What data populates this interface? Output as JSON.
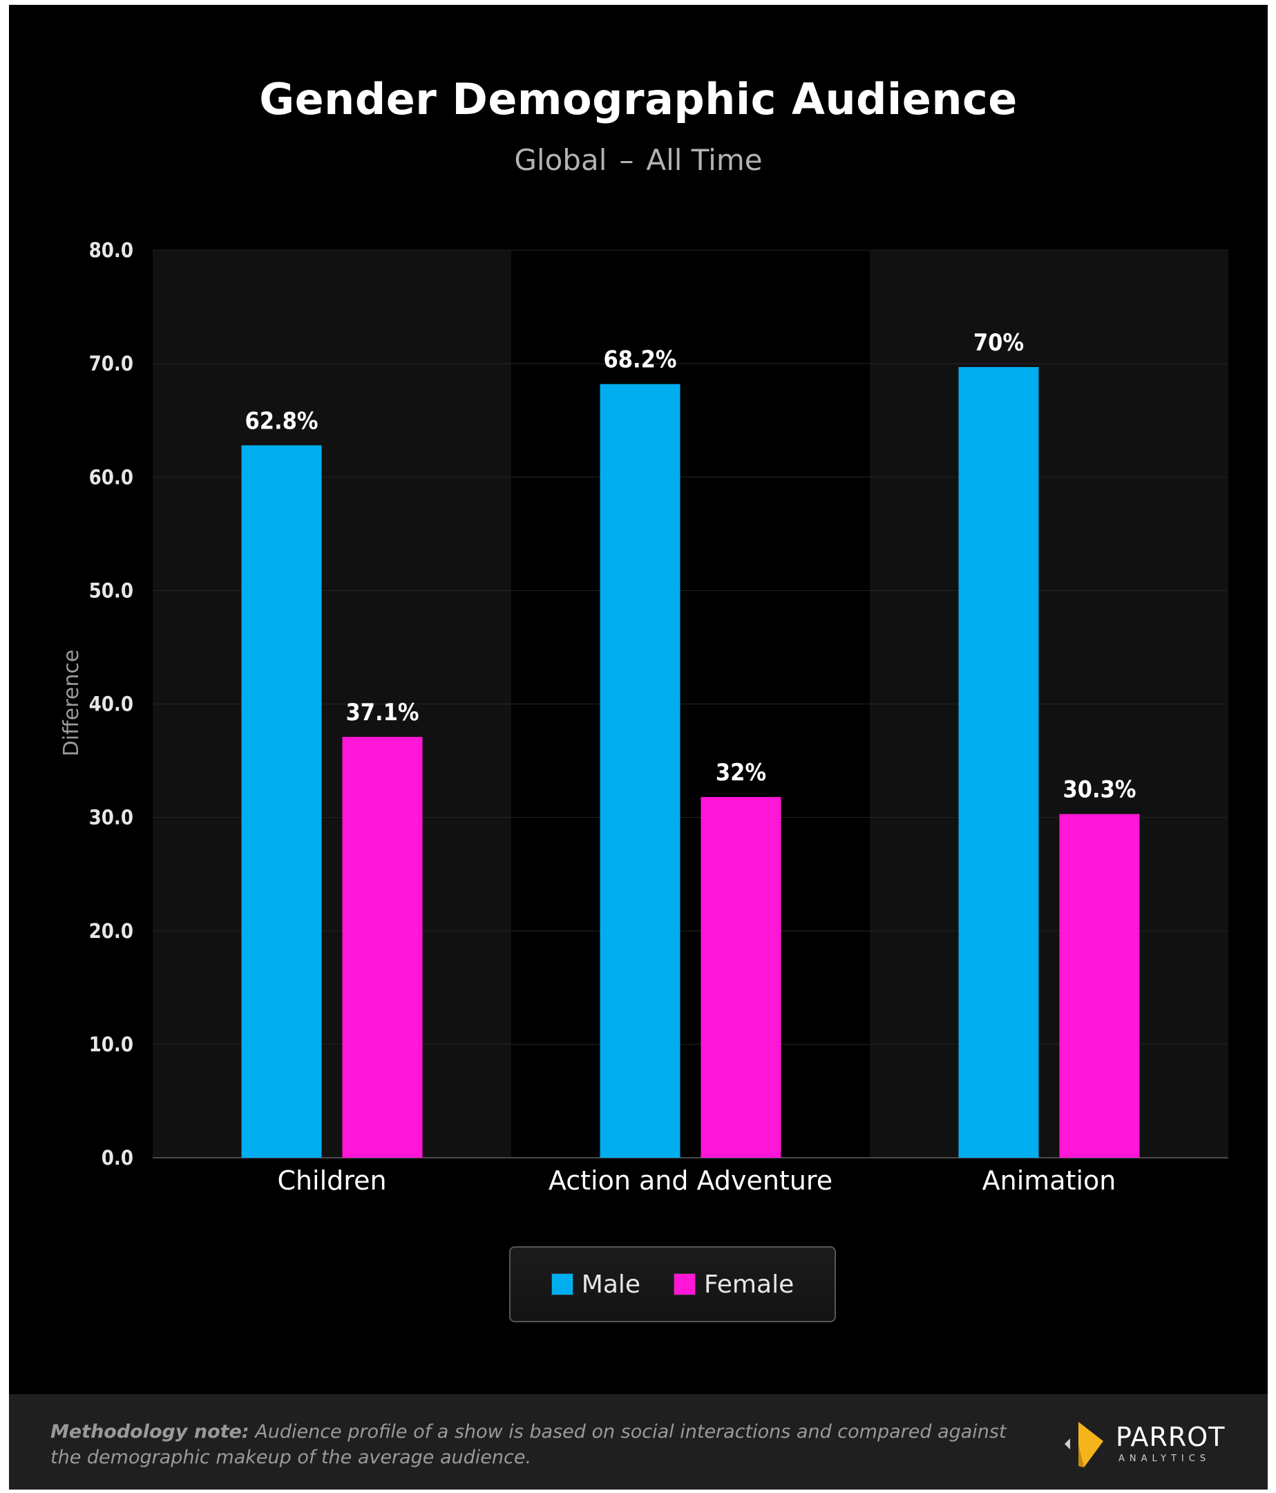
{
  "chart_data": {
    "type": "bar",
    "title": "Gender Demographic Audience",
    "subtitle_parts": [
      "Global",
      "–",
      "All Time"
    ],
    "ylabel": "Difference",
    "xlabel": "",
    "ylim": [
      0,
      80
    ],
    "yticks": [
      "0.0",
      "10.0",
      "20.0",
      "30.0",
      "40.0",
      "50.0",
      "60.0",
      "70.0",
      "80.0"
    ],
    "categories": [
      "Children",
      "Action and Adventure",
      "Animation"
    ],
    "series": [
      {
        "name": "Male",
        "color": "#00aeef",
        "values": [
          62.8,
          68.2,
          69.7
        ],
        "labels": [
          "62.8%",
          "68.2%",
          "70%"
        ]
      },
      {
        "name": "Female",
        "color": "#ff16d6",
        "values": [
          37.1,
          31.8,
          30.3
        ],
        "labels": [
          "37.1%",
          "32%",
          "30.3%"
        ]
      }
    ],
    "grid": true,
    "legend_position": "bottom-center"
  },
  "footer": {
    "note_label": "Methodology note:",
    "note_text": "Audience profile of a show is based on social interactions and compared against the demographic makeup of the average audience."
  },
  "logo": {
    "name": "PARROT",
    "subtitle": "ANALYTICS",
    "icon": "parrot-logo-icon"
  }
}
